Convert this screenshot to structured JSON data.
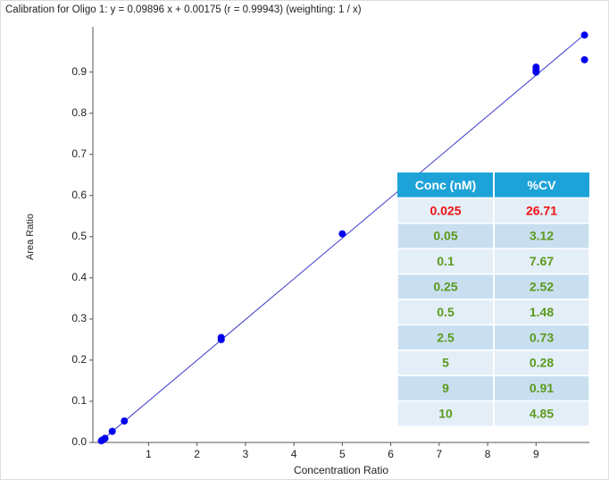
{
  "chart_data": {
    "type": "scatter",
    "title": "Calibration for Oligo 1: y = 0.09896 x + 0.00175 (r = 0.99943)  (weighting: 1 / x)",
    "xlabel": "Concentration Ratio",
    "ylabel": "Area Ratio",
    "xlim": [
      -0.15,
      10.1
    ],
    "ylim": [
      0,
      1.01
    ],
    "xticks": [
      1,
      2,
      3,
      4,
      5,
      6,
      7,
      8,
      9
    ],
    "yticks": [
      {
        "value": 0,
        "label": "0.0"
      },
      0.1,
      0.2,
      0.3,
      0.4,
      0.5,
      0.6,
      0.7,
      0.8,
      0.9
    ],
    "series": [
      {
        "color": "#0000ee",
        "x": [
          0.025,
          0.05,
          0.1,
          0.25,
          0.5,
          2.5,
          2.5,
          5,
          9,
          9,
          9,
          10,
          10
        ],
        "y": [
          0.004,
          0.006,
          0.01,
          0.027,
          0.052,
          0.25,
          0.255,
          0.507,
          0.912,
          0.9,
          0.905,
          0.99,
          0.93
        ]
      }
    ],
    "fit": {
      "color": "#3c3ccc",
      "x": [
        0,
        10
      ],
      "y": [
        0.00175,
        0.99135
      ]
    },
    "table": {
      "columns": [
        "Conc (nM)",
        "%CV"
      ],
      "rows": [
        [
          "0.025",
          "26.71"
        ],
        [
          "0.05",
          "3.12"
        ],
        [
          "0.1",
          "7.67"
        ],
        [
          "0.25",
          "2.52"
        ],
        [
          "0.5",
          "1.48"
        ],
        [
          "2.5",
          "0.73"
        ],
        [
          "5",
          "0.28"
        ],
        [
          "9",
          "0.91"
        ],
        [
          "10",
          "4.85"
        ]
      ],
      "header_color": "#1ea3d8",
      "highlight_color": "#ee1111",
      "text_color": "#5b9a1c"
    }
  }
}
